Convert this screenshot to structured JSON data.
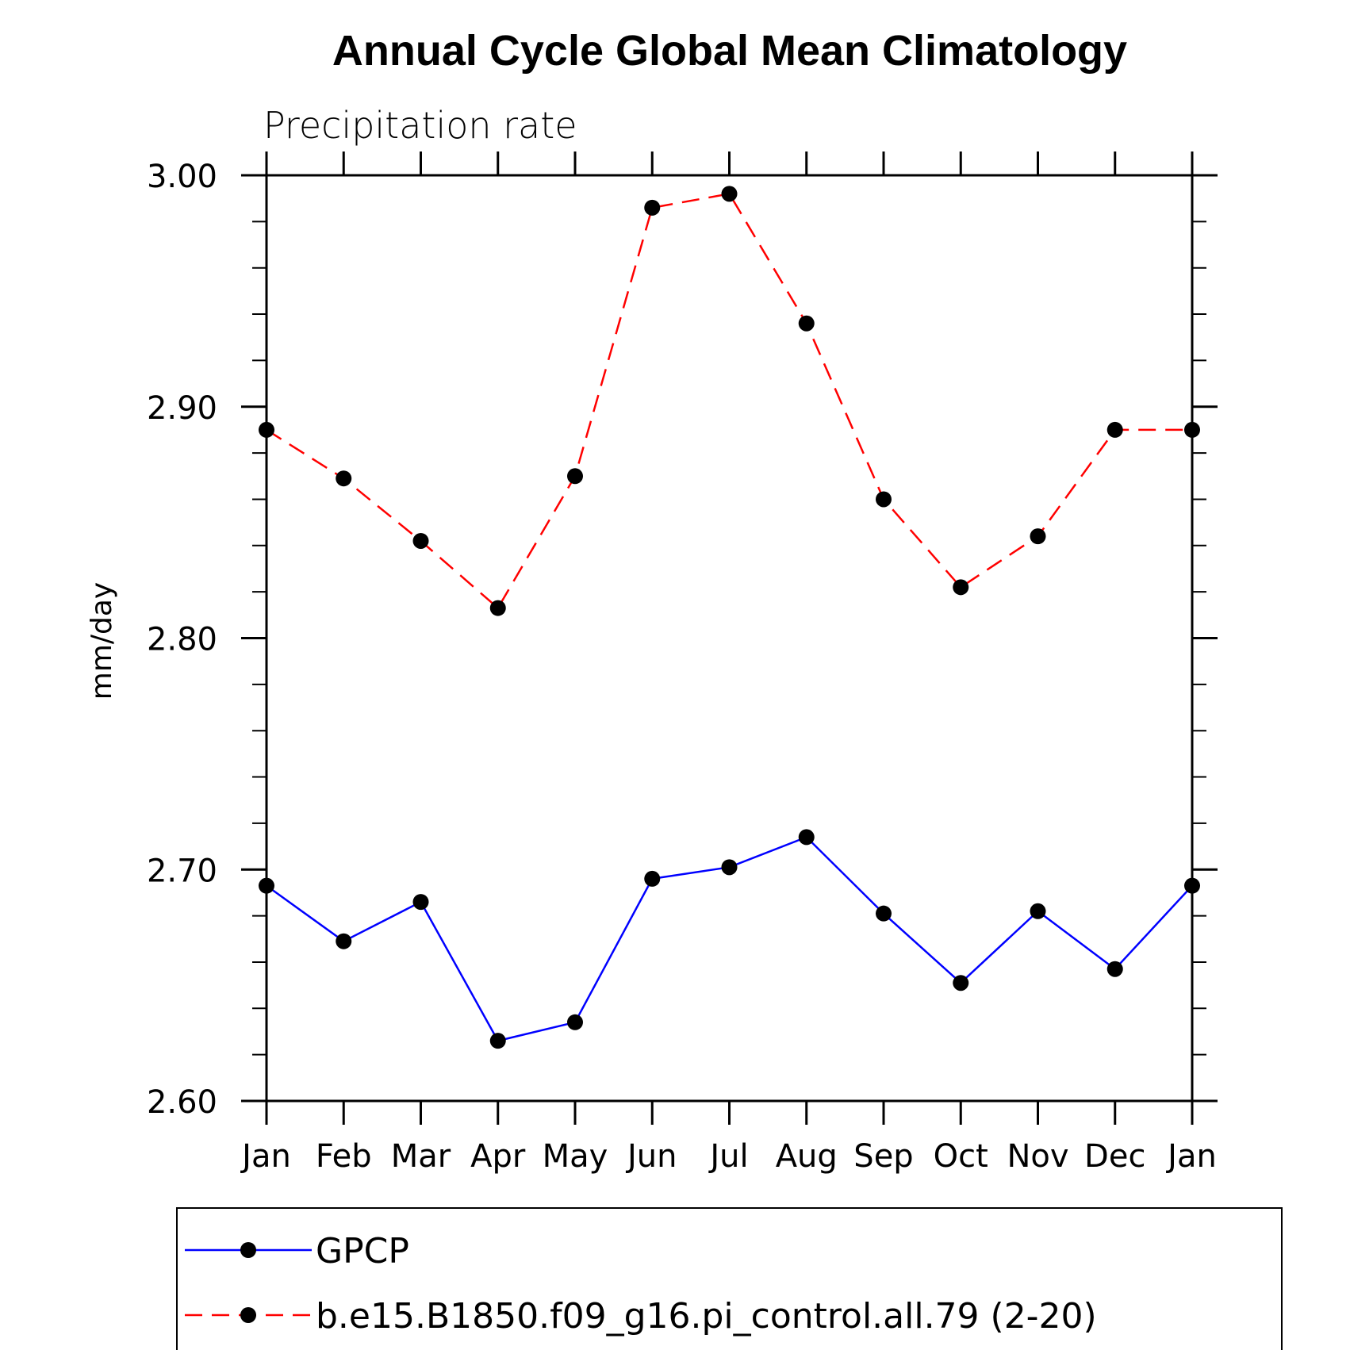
{
  "chart_data": {
    "type": "line",
    "title": "Annual Cycle Global Mean Climatology",
    "subtitle": "Precipitation rate",
    "ylabel": "mm/day",
    "xlabel": "",
    "categories": [
      "Jan",
      "Feb",
      "Mar",
      "Apr",
      "May",
      "Jun",
      "Jul",
      "Aug",
      "Sep",
      "Oct",
      "Nov",
      "Dec",
      "Jan"
    ],
    "ylim": [
      2.6,
      3.0
    ],
    "yticks": [
      "2.60",
      "2.70",
      "2.80",
      "2.90",
      "3.00"
    ],
    "ytick_values": [
      2.6,
      2.7,
      2.8,
      2.9,
      3.0
    ],
    "y_minor_step": 0.02,
    "grid": false,
    "legend_position": "bottom",
    "series": [
      {
        "name": "GPCP",
        "color": "#0000ff",
        "line_style": "solid",
        "marker": "filled-circle",
        "values": [
          2.693,
          2.669,
          2.686,
          2.626,
          2.634,
          2.696,
          2.701,
          2.714,
          2.681,
          2.651,
          2.682,
          2.657,
          2.693
        ]
      },
      {
        "name": "b.e15.B1850.f09_g16.pi_control.all.79 (2-20)",
        "color": "#ff0000",
        "line_style": "dashed",
        "marker": "filled-circle",
        "values": [
          2.89,
          2.869,
          2.842,
          2.813,
          2.87,
          2.986,
          2.992,
          2.936,
          2.86,
          2.822,
          2.844,
          2.89,
          2.89
        ]
      }
    ]
  }
}
